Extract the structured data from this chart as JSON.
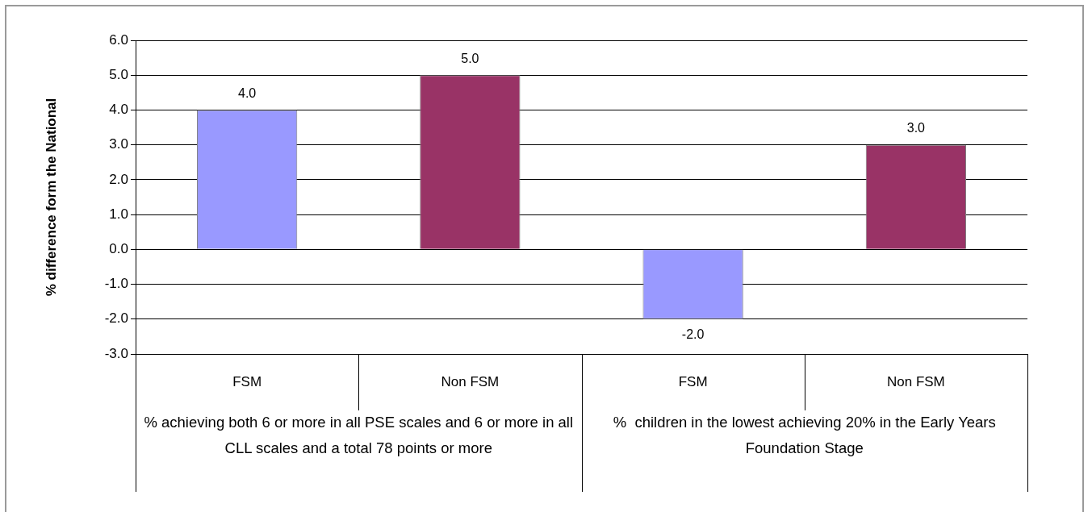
{
  "chart_data": {
    "type": "bar",
    "ylabel": "% difference form the National",
    "categories": [
      "FSM",
      "Non FSM",
      "FSM",
      "Non FSM"
    ],
    "values": [
      4,
      5,
      -2,
      3
    ],
    "value_labels": [
      "4.0",
      "5.0",
      "-2.0",
      "3.0"
    ],
    "colors": [
      "#9999ff",
      "#993366",
      "#9999ff",
      "#993366"
    ],
    "ylim": [
      -3,
      6
    ],
    "yticks": [
      {
        "value": -3,
        "label": "-3.0"
      },
      {
        "value": -2,
        "label": "-2.0"
      },
      {
        "value": -1,
        "label": "-1.0"
      },
      {
        "value": 0,
        "label": "0.0"
      },
      {
        "value": 1,
        "label": "1.0"
      },
      {
        "value": 2,
        "label": "2.0"
      },
      {
        "value": 3,
        "label": "3.0"
      },
      {
        "value": 4,
        "label": "4.0"
      },
      {
        "value": 5,
        "label": "5.0"
      },
      {
        "value": 6,
        "label": "6.0"
      }
    ],
    "grid": "y",
    "legend": false,
    "annotations": [
      "% achieving both 6 or more in all PSE scales and 6 or more in all CLL scales and a total 78 points or more",
      "%  children in the lowest achieving 20% in the Early Years Foundation Stage"
    ]
  }
}
